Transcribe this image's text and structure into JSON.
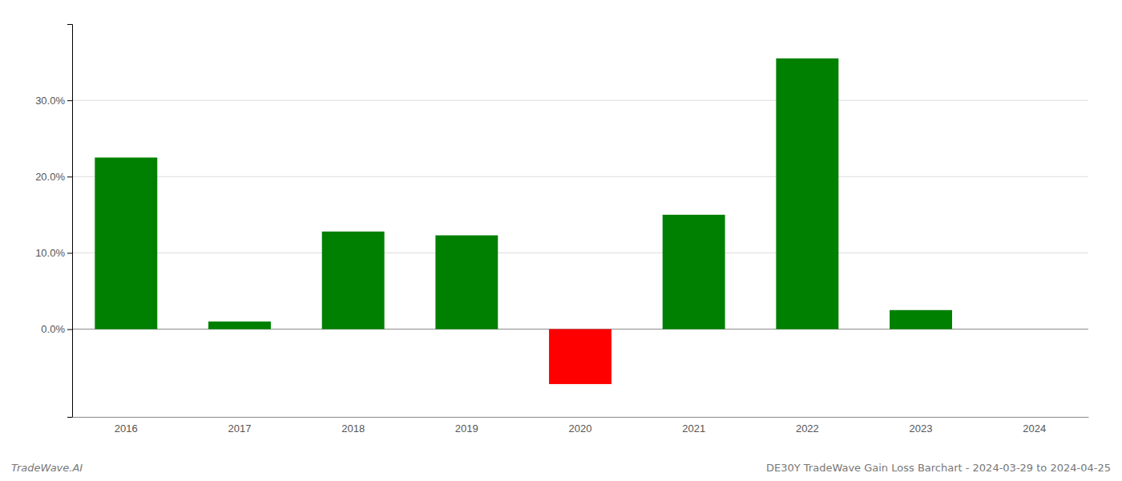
{
  "chart_data": {
    "type": "bar",
    "title": "DE30Y TradeWave Gain Loss Barchart - 2024-03-29 to 2024-04-25",
    "annotations": [
      "TradeWave.AI"
    ],
    "categories": [
      "2016",
      "2017",
      "2018",
      "2019",
      "2020",
      "2021",
      "2022",
      "2023",
      "2024"
    ],
    "values": [
      0.225,
      0.01,
      0.128,
      0.123,
      -0.072,
      0.15,
      0.355,
      0.025,
      0.0
    ],
    "colors": [
      "#008000",
      "#008000",
      "#008000",
      "#008000",
      "#ff0000",
      "#008000",
      "#008000",
      "#008000",
      "#008000"
    ],
    "ylim": [
      -0.115,
      0.4
    ],
    "yticks": [
      {
        "value": 0.0,
        "label": "0.0%"
      },
      {
        "value": 0.1,
        "label": "10.0%"
      },
      {
        "value": 0.2,
        "label": "20.0%"
      },
      {
        "value": 0.3,
        "label": "30.0%"
      }
    ],
    "grid": true
  }
}
